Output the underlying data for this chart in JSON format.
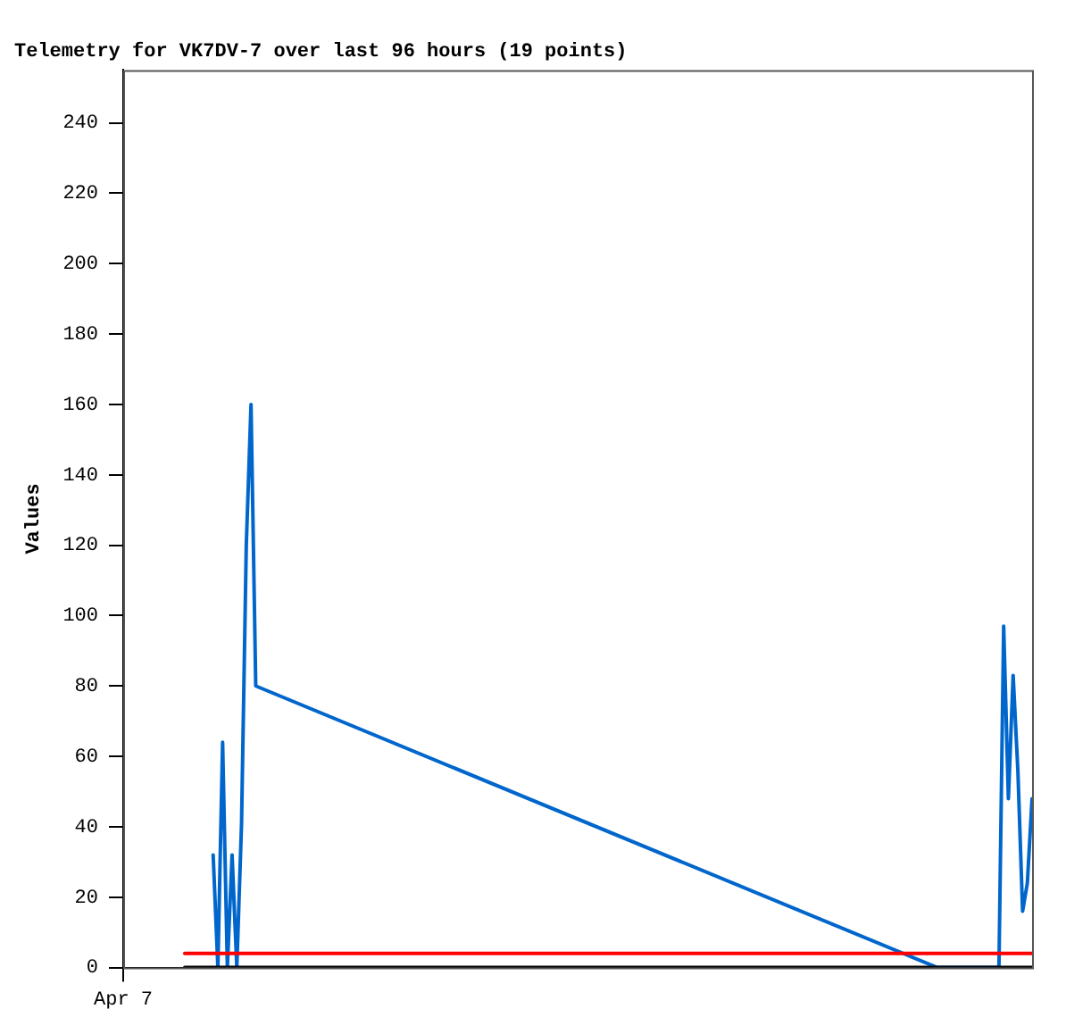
{
  "chart_data": {
    "type": "line",
    "title": "Telemetry for VK7DV-7 over last 96 hours (19 points)",
    "ylabel": "Values",
    "categories": [
      "Apr 7",
      null,
      null,
      null,
      null,
      null,
      null,
      null,
      null,
      null,
      null,
      null,
      null,
      null,
      null,
      null,
      null,
      null,
      null,
      null,
      null,
      null,
      null,
      null,
      null,
      null,
      null,
      null,
      null,
      null,
      null,
      null,
      null,
      null,
      null,
      null,
      null,
      null,
      null,
      null,
      null,
      null,
      null,
      null,
      null,
      null,
      null,
      null,
      null,
      null,
      null,
      null,
      null,
      null,
      null,
      null,
      null,
      null,
      null,
      null,
      null,
      null,
      null,
      null,
      null,
      null,
      null,
      null,
      null,
      null,
      null,
      null,
      null,
      null,
      null,
      null,
      null,
      null,
      null,
      null,
      null,
      null,
      null,
      null,
      null,
      null,
      null,
      null,
      null,
      null,
      null,
      null,
      null,
      null,
      null,
      null,
      null,
      null,
      null,
      null,
      null,
      null,
      null,
      null,
      null,
      null,
      null,
      null,
      null,
      null,
      null,
      null,
      null,
      null,
      null,
      null,
      null,
      null,
      null,
      null,
      null,
      null,
      null,
      null,
      null,
      null,
      null,
      null,
      null,
      null,
      null,
      null,
      null,
      null,
      null,
      null,
      null,
      null,
      null,
      null,
      null,
      null,
      null,
      null,
      null,
      null,
      null,
      null,
      null,
      null,
      null,
      null,
      null,
      null,
      null,
      null,
      null,
      null,
      null,
      null,
      null,
      null,
      null,
      null,
      null,
      null,
      null,
      null,
      null,
      null,
      null,
      null,
      null,
      null,
      null,
      null,
      null,
      null,
      null,
      null,
      null,
      null,
      null,
      null,
      null,
      null,
      null,
      null,
      null,
      null,
      null,
      null,
      null
    ],
    "ylim": [
      0,
      255
    ],
    "yticks": [
      0,
      20,
      40,
      60,
      80,
      100,
      120,
      140,
      160,
      180,
      200,
      220,
      240
    ],
    "grid": false,
    "legend": false,
    "marker": "none",
    "line_style": "solid",
    "series": [
      {
        "color": "#000000",
        "values": [
          null,
          null,
          null,
          null,
          null,
          null,
          null,
          null,
          null,
          null,
          null,
          null,
          null,
          0,
          null,
          null,
          null,
          null,
          null,
          null,
          null,
          null,
          null,
          null,
          null,
          null,
          null,
          null,
          null,
          null,
          null,
          null,
          null,
          null,
          null,
          null,
          null,
          null,
          null,
          null,
          null,
          null,
          null,
          null,
          null,
          null,
          null,
          null,
          null,
          null,
          null,
          null,
          null,
          null,
          null,
          null,
          null,
          null,
          null,
          null,
          null,
          null,
          null,
          null,
          null,
          null,
          null,
          null,
          null,
          null,
          null,
          null,
          null,
          null,
          null,
          null,
          null,
          null,
          null,
          null,
          null,
          null,
          null,
          null,
          null,
          null,
          null,
          null,
          null,
          null,
          null,
          null,
          null,
          null,
          null,
          null,
          null,
          null,
          null,
          null,
          null,
          null,
          null,
          null,
          null,
          null,
          null,
          null,
          null,
          null,
          null,
          null,
          null,
          null,
          null,
          null,
          null,
          null,
          null,
          null,
          null,
          null,
          null,
          null,
          null,
          null,
          null,
          null,
          null,
          null,
          null,
          null,
          null,
          null,
          null,
          null,
          null,
          null,
          null,
          null,
          null,
          null,
          null,
          null,
          null,
          null,
          null,
          null,
          null,
          null,
          null,
          null,
          null,
          null,
          null,
          null,
          null,
          null,
          null,
          null,
          null,
          null,
          null,
          null,
          null,
          null,
          null,
          null,
          null,
          null,
          null,
          null,
          null,
          null,
          null,
          null,
          null,
          null,
          null,
          null,
          null,
          null,
          null,
          null,
          null,
          null,
          null,
          null,
          null,
          null,
          null,
          null,
          0
        ]
      },
      {
        "color": "#ff0000",
        "values": [
          null,
          null,
          null,
          null,
          null,
          null,
          null,
          null,
          null,
          null,
          null,
          null,
          null,
          4,
          null,
          null,
          null,
          null,
          null,
          null,
          null,
          null,
          null,
          null,
          null,
          null,
          null,
          null,
          null,
          null,
          null,
          null,
          null,
          null,
          null,
          null,
          null,
          null,
          null,
          null,
          null,
          null,
          null,
          null,
          null,
          null,
          null,
          null,
          null,
          null,
          null,
          null,
          null,
          null,
          null,
          null,
          null,
          null,
          null,
          null,
          null,
          null,
          null,
          null,
          null,
          null,
          null,
          null,
          null,
          null,
          null,
          null,
          null,
          null,
          null,
          null,
          null,
          null,
          null,
          null,
          null,
          null,
          null,
          null,
          null,
          null,
          null,
          null,
          null,
          null,
          null,
          null,
          null,
          null,
          null,
          null,
          null,
          null,
          null,
          null,
          null,
          null,
          null,
          null,
          null,
          null,
          null,
          null,
          null,
          null,
          null,
          null,
          null,
          null,
          null,
          null,
          null,
          null,
          null,
          null,
          null,
          null,
          null,
          null,
          null,
          null,
          null,
          null,
          null,
          null,
          null,
          null,
          null,
          null,
          null,
          null,
          null,
          null,
          null,
          null,
          null,
          null,
          null,
          null,
          null,
          null,
          null,
          null,
          null,
          null,
          null,
          null,
          null,
          null,
          null,
          null,
          null,
          null,
          null,
          null,
          null,
          null,
          null,
          null,
          null,
          null,
          null,
          null,
          null,
          null,
          null,
          null,
          null,
          null,
          null,
          null,
          null,
          null,
          null,
          null,
          null,
          null,
          null,
          null,
          null,
          null,
          null,
          null,
          null,
          null,
          null,
          null,
          4
        ]
      },
      {
        "color": "#0066cc",
        "values": [
          null,
          null,
          null,
          null,
          null,
          null,
          null,
          null,
          null,
          null,
          null,
          null,
          null,
          null,
          null,
          null,
          null,
          null,
          null,
          32,
          0,
          64,
          0,
          32,
          0,
          41,
          120,
          160,
          80,
          null,
          null,
          null,
          null,
          null,
          null,
          null,
          null,
          null,
          null,
          null,
          null,
          null,
          null,
          null,
          null,
          null,
          null,
          null,
          null,
          null,
          null,
          null,
          null,
          null,
          null,
          null,
          null,
          null,
          null,
          null,
          null,
          null,
          null,
          null,
          null,
          null,
          null,
          null,
          null,
          null,
          null,
          null,
          null,
          null,
          null,
          null,
          null,
          null,
          null,
          null,
          null,
          null,
          null,
          null,
          null,
          null,
          null,
          null,
          null,
          null,
          null,
          null,
          null,
          null,
          null,
          null,
          null,
          null,
          null,
          null,
          null,
          null,
          null,
          null,
          null,
          null,
          null,
          null,
          null,
          null,
          null,
          null,
          null,
          null,
          null,
          null,
          null,
          null,
          null,
          null,
          null,
          null,
          null,
          null,
          null,
          null,
          null,
          null,
          null,
          null,
          null,
          null,
          null,
          null,
          null,
          null,
          null,
          null,
          null,
          null,
          null,
          null,
          null,
          null,
          null,
          null,
          null,
          null,
          null,
          null,
          null,
          null,
          null,
          null,
          null,
          null,
          null,
          null,
          null,
          null,
          null,
          null,
          null,
          null,
          null,
          null,
          null,
          null,
          null,
          null,
          null,
          null,
          0,
          null,
          null,
          null,
          null,
          null,
          null,
          null,
          null,
          null,
          null,
          null,
          null,
          0,
          97,
          48,
          83,
          56,
          16,
          24,
          48
        ]
      }
    ]
  }
}
